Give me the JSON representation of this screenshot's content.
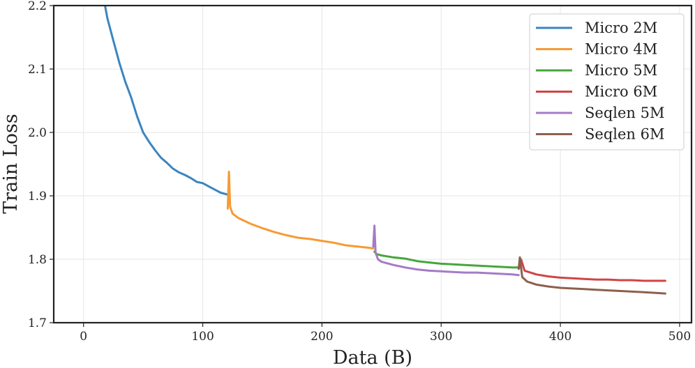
{
  "chart_data": {
    "type": "line",
    "title": "",
    "xlabel": "Data (B)",
    "ylabel": "Train Loss",
    "xlim": [
      -25,
      510
    ],
    "ylim": [
      1.7,
      2.2
    ],
    "xticks": [
      0,
      100,
      200,
      300,
      400,
      500
    ],
    "xtick_labels": [
      "0",
      "100",
      "200",
      "300",
      "400",
      "500"
    ],
    "yticks": [
      1.7,
      1.8,
      1.9,
      2.0,
      2.1,
      2.2
    ],
    "ytick_labels": [
      "1.7",
      "1.8",
      "1.9",
      "2.0",
      "2.1",
      "2.2"
    ],
    "grid": true,
    "legend_position": "top-right",
    "series": [
      {
        "name": "Micro 2M",
        "color": "#3a85c0",
        "points": [
          [
            17,
            2.21
          ],
          [
            20,
            2.18
          ],
          [
            25,
            2.145
          ],
          [
            30,
            2.11
          ],
          [
            35,
            2.08
          ],
          [
            40,
            2.055
          ],
          [
            45,
            2.025
          ],
          [
            50,
            2.0
          ],
          [
            55,
            1.985
          ],
          [
            60,
            1.972
          ],
          [
            65,
            1.96
          ],
          [
            70,
            1.952
          ],
          [
            75,
            1.943
          ],
          [
            80,
            1.937
          ],
          [
            85,
            1.933
          ],
          [
            90,
            1.928
          ],
          [
            95,
            1.922
          ],
          [
            100,
            1.92
          ],
          [
            105,
            1.915
          ],
          [
            110,
            1.91
          ],
          [
            115,
            1.905
          ],
          [
            121,
            1.902
          ]
        ]
      },
      {
        "name": "Micro 4M",
        "color": "#f79a34",
        "points": [
          [
            121,
            1.88
          ],
          [
            122,
            1.938
          ],
          [
            123,
            1.883
          ],
          [
            125,
            1.872
          ],
          [
            130,
            1.865
          ],
          [
            140,
            1.856
          ],
          [
            150,
            1.849
          ],
          [
            160,
            1.843
          ],
          [
            170,
            1.838
          ],
          [
            180,
            1.834
          ],
          [
            190,
            1.832
          ],
          [
            200,
            1.829
          ],
          [
            210,
            1.826
          ],
          [
            220,
            1.822
          ],
          [
            230,
            1.82
          ],
          [
            240,
            1.818
          ],
          [
            243,
            1.817
          ]
        ]
      },
      {
        "name": "Micro 5M",
        "color": "#46a63c",
        "points": [
          [
            244,
            1.812
          ],
          [
            246,
            1.808
          ],
          [
            250,
            1.806
          ],
          [
            260,
            1.803
          ],
          [
            270,
            1.801
          ],
          [
            280,
            1.797
          ],
          [
            290,
            1.795
          ],
          [
            300,
            1.793
          ],
          [
            310,
            1.792
          ],
          [
            320,
            1.791
          ],
          [
            330,
            1.79
          ],
          [
            340,
            1.789
          ],
          [
            350,
            1.788
          ],
          [
            360,
            1.787
          ],
          [
            366,
            1.787
          ]
        ]
      },
      {
        "name": "Micro 6M",
        "color": "#d14444",
        "points": [
          [
            366,
            1.795
          ],
          [
            367,
            1.8
          ],
          [
            370,
            1.782
          ],
          [
            380,
            1.776
          ],
          [
            390,
            1.773
          ],
          [
            400,
            1.771
          ],
          [
            410,
            1.77
          ],
          [
            420,
            1.769
          ],
          [
            430,
            1.768
          ],
          [
            440,
            1.768
          ],
          [
            450,
            1.767
          ],
          [
            460,
            1.767
          ],
          [
            470,
            1.766
          ],
          [
            480,
            1.766
          ],
          [
            488,
            1.766
          ]
        ]
      },
      {
        "name": "Seqlen 5M",
        "color": "#a47bc6",
        "points": [
          [
            243,
            1.82
          ],
          [
            244,
            1.853
          ],
          [
            245,
            1.81
          ],
          [
            247,
            1.8
          ],
          [
            250,
            1.796
          ],
          [
            260,
            1.791
          ],
          [
            270,
            1.787
          ],
          [
            280,
            1.784
          ],
          [
            290,
            1.782
          ],
          [
            300,
            1.781
          ],
          [
            310,
            1.78
          ],
          [
            320,
            1.779
          ],
          [
            330,
            1.779
          ],
          [
            340,
            1.778
          ],
          [
            350,
            1.777
          ],
          [
            360,
            1.776
          ],
          [
            365,
            1.775
          ]
        ]
      },
      {
        "name": "Seqlen 6M",
        "color": "#8e5f4e",
        "points": [
          [
            365,
            1.785
          ],
          [
            366,
            1.803
          ],
          [
            368,
            1.772
          ],
          [
            372,
            1.765
          ],
          [
            380,
            1.76
          ],
          [
            390,
            1.757
          ],
          [
            400,
            1.755
          ],
          [
            410,
            1.754
          ],
          [
            420,
            1.753
          ],
          [
            430,
            1.752
          ],
          [
            440,
            1.751
          ],
          [
            450,
            1.75
          ],
          [
            460,
            1.749
          ],
          [
            470,
            1.748
          ],
          [
            480,
            1.747
          ],
          [
            488,
            1.746
          ]
        ]
      }
    ]
  }
}
